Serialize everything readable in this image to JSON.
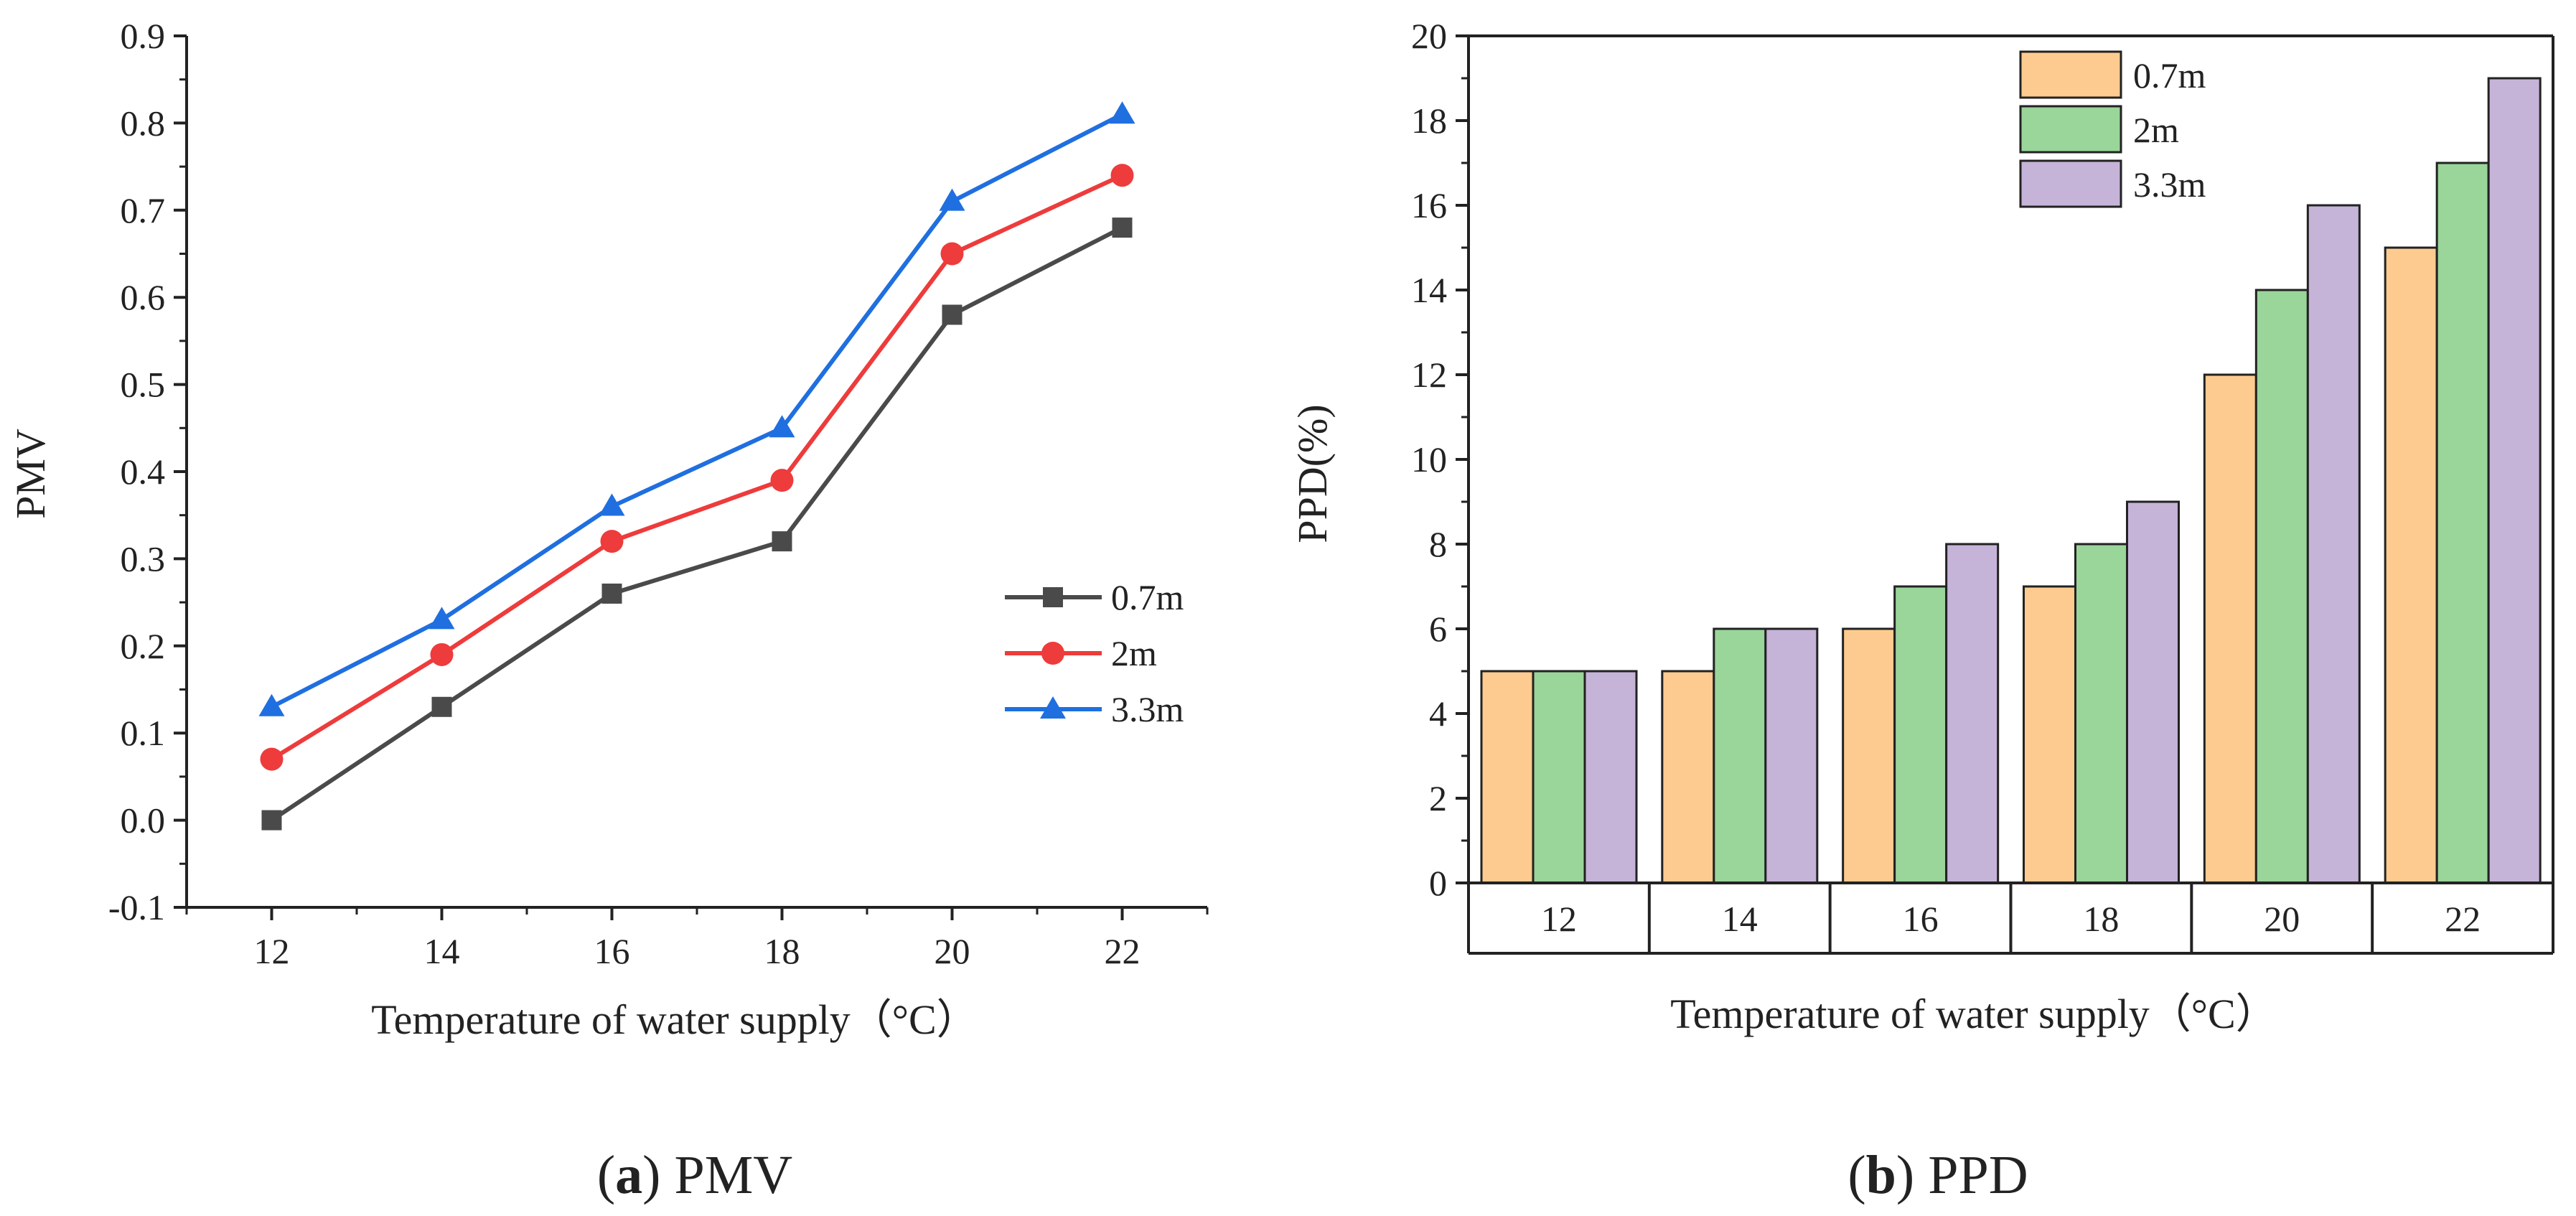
{
  "chart_data": [
    {
      "type": "line",
      "panel": "a",
      "x": [
        12,
        14,
        16,
        18,
        20,
        22
      ],
      "xticks": [
        "12",
        "14",
        "16",
        "18",
        "20",
        "22"
      ],
      "xlabel": "Temperature of water supply（°C）",
      "ylabel": "PMV",
      "ylim": [
        -0.1,
        0.9
      ],
      "yticks": [
        "-0.1",
        "0.0",
        "0.1",
        "0.2",
        "0.3",
        "0.4",
        "0.5",
        "0.6",
        "0.7",
        "0.8",
        "0.9"
      ],
      "grid": false,
      "legend_position": "right",
      "series": [
        {
          "name": "0.7m",
          "color": "#4a4a4a",
          "marker": "square",
          "values": [
            0.0,
            0.13,
            0.26,
            0.32,
            0.58,
            0.68
          ]
        },
        {
          "name": "2m",
          "color": "#ee3b3b",
          "marker": "circle",
          "values": [
            0.07,
            0.19,
            0.32,
            0.39,
            0.65,
            0.74
          ]
        },
        {
          "name": "3.3m",
          "color": "#1f6fe0",
          "marker": "triangle",
          "values": [
            0.13,
            0.23,
            0.36,
            0.45,
            0.71,
            0.81
          ]
        }
      ],
      "caption_label": "a",
      "caption_text": "PMV"
    },
    {
      "type": "bar",
      "panel": "b",
      "categories": [
        "12",
        "14",
        "16",
        "18",
        "20",
        "22"
      ],
      "xlabel": "Temperature of water supply（°C）",
      "ylabel": "PPD(%)",
      "ylim": [
        0,
        20
      ],
      "yticks": [
        "0",
        "2",
        "4",
        "6",
        "8",
        "10",
        "12",
        "14",
        "16",
        "18",
        "20"
      ],
      "grid": false,
      "legend_position": "top-center",
      "series": [
        {
          "name": "0.7m",
          "color": "#fdcb8f",
          "values": [
            5,
            5,
            6,
            7,
            12,
            15
          ]
        },
        {
          "name": "2m",
          "color": "#9ad59a",
          "values": [
            5,
            6,
            7,
            8,
            14,
            17
          ]
        },
        {
          "name": "3.3m",
          "color": "#c5b3d8",
          "values": [
            5,
            6,
            8,
            9,
            16,
            19
          ]
        }
      ],
      "caption_label": "b",
      "caption_text": "PPD"
    }
  ]
}
